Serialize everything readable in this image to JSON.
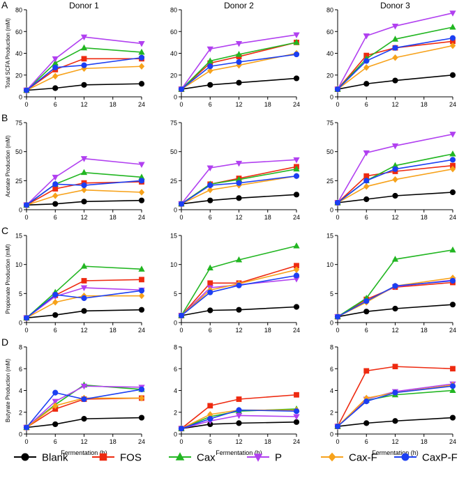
{
  "figure": {
    "donor_titles": [
      "Donor 1",
      "Donor 2",
      "Donor 3"
    ],
    "row_letters": [
      "A",
      "B",
      "C",
      "D"
    ],
    "row_ylabels": [
      "Total SCFA Production (mM)",
      "Acetate Production (mM)",
      "Propionate Production (mM)",
      "Butyrate Production (mM)"
    ],
    "xlabel": "Fermentation (h)",
    "x_ticks": [
      0,
      6,
      12,
      18,
      24
    ]
  },
  "legend": [
    {
      "name": "Blank",
      "color": "#000000",
      "marker": "circle"
    },
    {
      "name": "FOS",
      "color": "#ee2a10",
      "marker": "square"
    },
    {
      "name": "Cax",
      "color": "#22b622",
      "marker": "triangle-up"
    },
    {
      "name": "P",
      "color": "#b140f0",
      "marker": "triangle-down"
    },
    {
      "name": "Cax-F",
      "color": "#f7a21b",
      "marker": "diamond"
    },
    {
      "name": "CaxP-F",
      "color": "#1c3ff2",
      "marker": "circle"
    }
  ],
  "chart_data": [
    {
      "type": "line",
      "row": "A",
      "donor": "Donor 1",
      "xlabel": "",
      "ylabel": "Total SCFA Production (mM)",
      "x": [
        0,
        6,
        12,
        24
      ],
      "ylim": [
        0,
        80
      ],
      "yticks": [
        0,
        20,
        40,
        60,
        80
      ],
      "series": [
        {
          "name": "Blank",
          "values": [
            6,
            8,
            11,
            12
          ]
        },
        {
          "name": "FOS",
          "values": [
            6,
            25,
            35,
            35
          ]
        },
        {
          "name": "Cax",
          "values": [
            6,
            31,
            45,
            41
          ]
        },
        {
          "name": "P",
          "values": [
            6,
            35,
            55,
            49
          ]
        },
        {
          "name": "Cax-F",
          "values": [
            6,
            19,
            26,
            28
          ]
        },
        {
          "name": "CaxP-F",
          "values": [
            6,
            27,
            29,
            36
          ]
        }
      ]
    },
    {
      "type": "line",
      "row": "A",
      "donor": "Donor 2",
      "xlabel": "",
      "ylabel": "",
      "x": [
        0,
        6,
        12,
        24
      ],
      "ylim": [
        0,
        80
      ],
      "yticks": [
        0,
        20,
        40,
        60,
        80
      ],
      "series": [
        {
          "name": "Blank",
          "values": [
            7,
            11,
            13,
            17
          ]
        },
        {
          "name": "FOS",
          "values": [
            7,
            31,
            37,
            50
          ]
        },
        {
          "name": "Cax",
          "values": [
            7,
            33,
            39,
            50
          ]
        },
        {
          "name": "P",
          "values": [
            7,
            44,
            49,
            57
          ]
        },
        {
          "name": "Cax-F",
          "values": [
            7,
            24,
            29,
            40
          ]
        },
        {
          "name": "CaxP-F",
          "values": [
            7,
            28,
            32,
            39
          ]
        }
      ]
    },
    {
      "type": "line",
      "row": "A",
      "donor": "Donor 3",
      "xlabel": "",
      "ylabel": "",
      "x": [
        0,
        6,
        12,
        24
      ],
      "ylim": [
        0,
        80
      ],
      "yticks": [
        0,
        20,
        40,
        60,
        80
      ],
      "series": [
        {
          "name": "Blank",
          "values": [
            7,
            12,
            15,
            20
          ]
        },
        {
          "name": "FOS",
          "values": [
            7,
            38,
            45,
            51
          ]
        },
        {
          "name": "Cax",
          "values": [
            7,
            35,
            53,
            64
          ]
        },
        {
          "name": "P",
          "values": [
            7,
            56,
            65,
            77
          ]
        },
        {
          "name": "Cax-F",
          "values": [
            7,
            27,
            36,
            47
          ]
        },
        {
          "name": "CaxP-F",
          "values": [
            7,
            33,
            45,
            54
          ]
        }
      ]
    },
    {
      "type": "line",
      "row": "B",
      "donor": "Donor 1",
      "xlabel": "",
      "ylabel": "Acetate Production (mM)",
      "x": [
        0,
        6,
        12,
        24
      ],
      "ylim": [
        0,
        75
      ],
      "yticks": [
        0,
        25,
        50,
        75
      ],
      "series": [
        {
          "name": "Blank",
          "values": [
            4,
            5,
            7,
            8
          ]
        },
        {
          "name": "FOS",
          "values": [
            4,
            18,
            23,
            24
          ]
        },
        {
          "name": "Cax",
          "values": [
            4,
            22,
            32,
            28
          ]
        },
        {
          "name": "P",
          "values": [
            4,
            28,
            44,
            39
          ]
        },
        {
          "name": "Cax-F",
          "values": [
            4,
            12,
            17,
            15
          ]
        },
        {
          "name": "CaxP-F",
          "values": [
            4,
            22,
            21,
            25
          ]
        }
      ]
    },
    {
      "type": "line",
      "row": "B",
      "donor": "Donor 2",
      "xlabel": "",
      "ylabel": "",
      "x": [
        0,
        6,
        12,
        24
      ],
      "ylim": [
        0,
        75
      ],
      "yticks": [
        0,
        25,
        50,
        75
      ],
      "series": [
        {
          "name": "Blank",
          "values": [
            5,
            8,
            10,
            13
          ]
        },
        {
          "name": "FOS",
          "values": [
            5,
            22,
            27,
            37
          ]
        },
        {
          "name": "Cax",
          "values": [
            5,
            22,
            26,
            35
          ]
        },
        {
          "name": "P",
          "values": [
            5,
            36,
            40,
            43
          ]
        },
        {
          "name": "Cax-F",
          "values": [
            5,
            17,
            21,
            29
          ]
        },
        {
          "name": "CaxP-F",
          "values": [
            5,
            21,
            23,
            29
          ]
        }
      ]
    },
    {
      "type": "line",
      "row": "B",
      "donor": "Donor 3",
      "xlabel": "",
      "ylabel": "",
      "x": [
        0,
        6,
        12,
        24
      ],
      "ylim": [
        0,
        75
      ],
      "yticks": [
        0,
        25,
        50,
        75
      ],
      "series": [
        {
          "name": "Blank",
          "values": [
            6,
            9,
            12,
            15
          ]
        },
        {
          "name": "FOS",
          "values": [
            6,
            29,
            33,
            38
          ]
        },
        {
          "name": "Cax",
          "values": [
            6,
            25,
            38,
            48
          ]
        },
        {
          "name": "P",
          "values": [
            6,
            49,
            55,
            65
          ]
        },
        {
          "name": "Cax-F",
          "values": [
            6,
            20,
            26,
            35
          ]
        },
        {
          "name": "CaxP-F",
          "values": [
            6,
            25,
            35,
            43
          ]
        }
      ]
    },
    {
      "type": "line",
      "row": "C",
      "donor": "Donor 1",
      "xlabel": "",
      "ylabel": "Propionate Production (mM)",
      "x": [
        0,
        6,
        12,
        24
      ],
      "ylim": [
        0,
        15
      ],
      "yticks": [
        0,
        5,
        10,
        15
      ],
      "series": [
        {
          "name": "Blank",
          "values": [
            0.8,
            1.3,
            2.0,
            2.2
          ]
        },
        {
          "name": "FOS",
          "values": [
            0.8,
            4.7,
            7.2,
            7.4
          ]
        },
        {
          "name": "Cax",
          "values": [
            0.8,
            5.2,
            9.7,
            9.2
          ]
        },
        {
          "name": "P",
          "values": [
            0.8,
            4.5,
            6.0,
            5.6
          ]
        },
        {
          "name": "Cax-F",
          "values": [
            0.8,
            3.5,
            4.6,
            4.6
          ]
        },
        {
          "name": "CaxP-F",
          "values": [
            0.8,
            4.8,
            4.2,
            5.5
          ]
        }
      ]
    },
    {
      "type": "line",
      "row": "C",
      "donor": "Donor 2",
      "xlabel": "",
      "ylabel": "",
      "x": [
        0,
        6,
        12,
        24
      ],
      "ylim": [
        0,
        15
      ],
      "yticks": [
        0,
        5,
        10,
        15
      ],
      "series": [
        {
          "name": "Blank",
          "values": [
            1.2,
            2.1,
            2.2,
            2.7
          ]
        },
        {
          "name": "FOS",
          "values": [
            1.2,
            6.8,
            6.8,
            9.8
          ]
        },
        {
          "name": "Cax",
          "values": [
            1.2,
            9.4,
            10.8,
            13.2
          ]
        },
        {
          "name": "P",
          "values": [
            1.2,
            6.0,
            6.5,
            7.5
          ]
        },
        {
          "name": "Cax-F",
          "values": [
            1.2,
            5.6,
            6.7,
            9.1
          ]
        },
        {
          "name": "CaxP-F",
          "values": [
            1.2,
            5.2,
            6.4,
            8.1
          ]
        }
      ]
    },
    {
      "type": "line",
      "row": "C",
      "donor": "Donor 3",
      "xlabel": "",
      "ylabel": "",
      "x": [
        0,
        6,
        12,
        24
      ],
      "ylim": [
        0,
        15
      ],
      "yticks": [
        0,
        5,
        10,
        15
      ],
      "series": [
        {
          "name": "Blank",
          "values": [
            1.0,
            1.9,
            2.4,
            3.1
          ]
        },
        {
          "name": "FOS",
          "values": [
            1.0,
            4.0,
            6.1,
            6.9
          ]
        },
        {
          "name": "Cax",
          "values": [
            1.0,
            4.2,
            10.9,
            12.5
          ]
        },
        {
          "name": "P",
          "values": [
            1.0,
            3.6,
            6.2,
            7.3
          ]
        },
        {
          "name": "Cax-F",
          "values": [
            1.0,
            3.5,
            6.3,
            7.7
          ]
        },
        {
          "name": "CaxP-F",
          "values": [
            1.0,
            3.7,
            6.3,
            7.2
          ]
        }
      ]
    },
    {
      "type": "line",
      "row": "D",
      "donor": "Donor 1",
      "xlabel": "Fermentation (h)",
      "ylabel": "Butyrate Production (mM)",
      "x": [
        0,
        6,
        12,
        24
      ],
      "ylim": [
        0,
        8
      ],
      "yticks": [
        0,
        2,
        4,
        6,
        8
      ],
      "series": [
        {
          "name": "Blank",
          "values": [
            0.6,
            0.9,
            1.4,
            1.5
          ]
        },
        {
          "name": "FOS",
          "values": [
            0.6,
            2.3,
            3.2,
            3.3
          ]
        },
        {
          "name": "Cax",
          "values": [
            0.6,
            2.7,
            4.5,
            4.1
          ]
        },
        {
          "name": "P",
          "values": [
            0.6,
            3.0,
            4.4,
            4.3
          ]
        },
        {
          "name": "Cax-F",
          "values": [
            0.6,
            2.6,
            3.3,
            3.3
          ]
        },
        {
          "name": "CaxP-F",
          "values": [
            0.6,
            3.8,
            3.2,
            4.1
          ]
        }
      ]
    },
    {
      "type": "line",
      "row": "D",
      "donor": "Donor 2",
      "xlabel": "Fermentation (h)",
      "ylabel": "",
      "x": [
        0,
        6,
        12,
        24
      ],
      "ylim": [
        0,
        8
      ],
      "yticks": [
        0,
        2,
        4,
        6,
        8
      ],
      "series": [
        {
          "name": "Blank",
          "values": [
            0.5,
            0.9,
            1.0,
            1.1
          ]
        },
        {
          "name": "FOS",
          "values": [
            0.5,
            2.6,
            3.2,
            3.6
          ]
        },
        {
          "name": "Cax",
          "values": [
            0.5,
            1.6,
            2.1,
            2.3
          ]
        },
        {
          "name": "P",
          "values": [
            0.5,
            1.2,
            1.7,
            1.6
          ]
        },
        {
          "name": "Cax-F",
          "values": [
            0.5,
            1.8,
            2.2,
            2.2
          ]
        },
        {
          "name": "CaxP-F",
          "values": [
            0.5,
            1.4,
            2.2,
            2.1
          ]
        }
      ]
    },
    {
      "type": "line",
      "row": "D",
      "donor": "Donor 3",
      "xlabel": "Fermentation (h)",
      "ylabel": "",
      "x": [
        0,
        6,
        12,
        24
      ],
      "ylim": [
        0,
        8
      ],
      "yticks": [
        0,
        2,
        4,
        6,
        8
      ],
      "series": [
        {
          "name": "Blank",
          "values": [
            0.7,
            1.0,
            1.2,
            1.5
          ]
        },
        {
          "name": "FOS",
          "values": [
            0.7,
            5.8,
            6.2,
            6.0
          ]
        },
        {
          "name": "Cax",
          "values": [
            0.7,
            3.1,
            3.6,
            4.0
          ]
        },
        {
          "name": "P",
          "values": [
            0.7,
            3.2,
            3.9,
            4.6
          ]
        },
        {
          "name": "Cax-F",
          "values": [
            0.7,
            3.3,
            3.8,
            4.5
          ]
        },
        {
          "name": "CaxP-F",
          "values": [
            0.7,
            3.0,
            3.8,
            4.4
          ]
        }
      ]
    }
  ]
}
